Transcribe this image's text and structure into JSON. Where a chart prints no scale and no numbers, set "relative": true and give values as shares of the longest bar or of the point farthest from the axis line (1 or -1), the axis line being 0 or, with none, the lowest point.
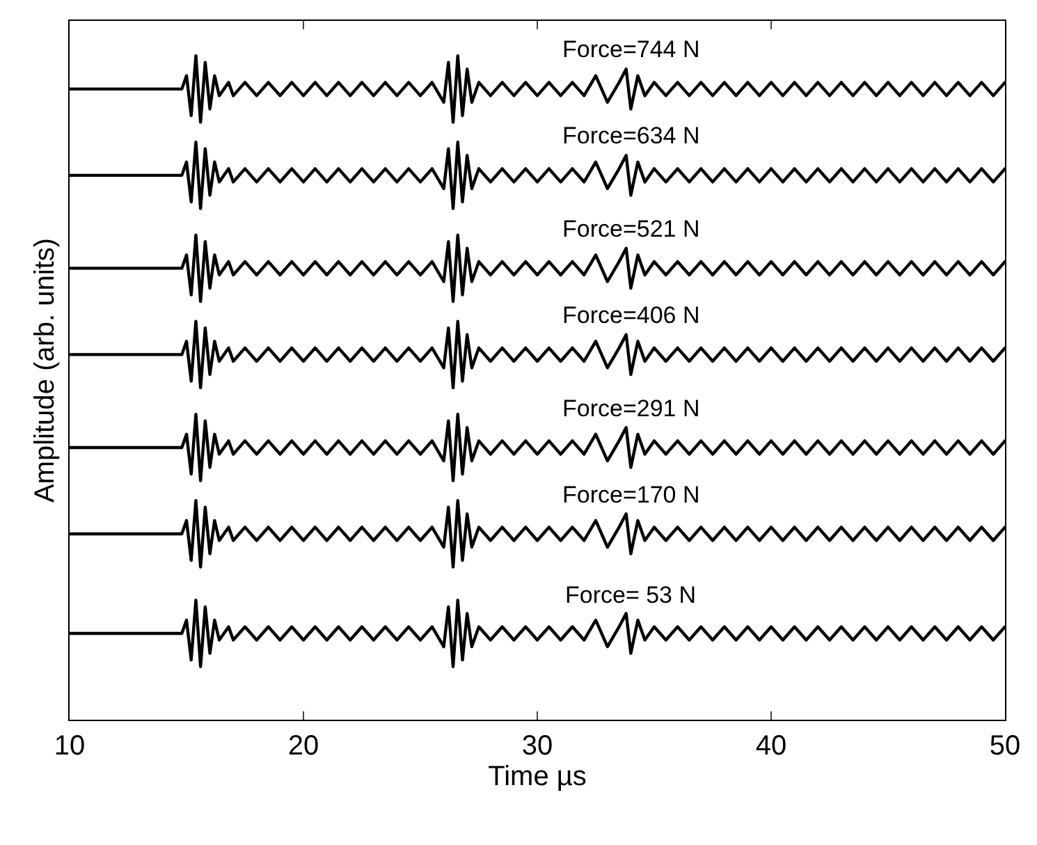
{
  "chart_data": {
    "type": "line",
    "xlabel": "Time µs",
    "ylabel": "Amplitude (arb. units)",
    "relative": true,
    "tick_labels": "x",
    "legend": false,
    "marker": "none",
    "line_style": "solid",
    "xlim": [
      10,
      50
    ],
    "xticks": [
      10,
      20,
      30,
      40,
      50
    ],
    "x": [
      10,
      14.8,
      15.0,
      15.2,
      15.4,
      15.6,
      15.8,
      16.0,
      16.2,
      16.4,
      16.8,
      17.0,
      17.5,
      18,
      18.5,
      19,
      19.5,
      20,
      20.5,
      21,
      21.5,
      22,
      22.5,
      23,
      23.5,
      24,
      24.5,
      25,
      25.5,
      26.0,
      26.2,
      26.4,
      26.6,
      26.8,
      27.0,
      27.2,
      27.5,
      28,
      28.5,
      29,
      29.5,
      30,
      30.5,
      31,
      31.5,
      32,
      32.5,
      33,
      33.5,
      33.8,
      34.0,
      34.3,
      34.6,
      35,
      35.5,
      36,
      36.5,
      37,
      37.5,
      38,
      38.5,
      39,
      39.5,
      40,
      40.5,
      41,
      41.5,
      42,
      42.5,
      43,
      43.5,
      44,
      44.5,
      45,
      45.5,
      46,
      46.5,
      47,
      47.5,
      48,
      48.5,
      49,
      49.5,
      50
    ],
    "series": [
      {
        "name": "Force=744 N",
        "color": "#000000",
        "values": [
          0.95,
          0.95,
          0.97,
          0.91,
          1.0,
          0.9,
          0.99,
          0.92,
          0.97,
          0.94,
          0.96,
          0.94,
          0.96,
          0.94,
          0.96,
          0.94,
          0.96,
          0.94,
          0.96,
          0.94,
          0.96,
          0.94,
          0.96,
          0.94,
          0.96,
          0.94,
          0.96,
          0.94,
          0.96,
          0.93,
          0.99,
          0.9,
          1.0,
          0.91,
          0.98,
          0.93,
          0.96,
          0.94,
          0.96,
          0.94,
          0.96,
          0.94,
          0.96,
          0.94,
          0.96,
          0.94,
          0.97,
          0.93,
          0.96,
          0.98,
          0.92,
          0.97,
          0.94,
          0.96,
          0.94,
          0.96,
          0.94,
          0.96,
          0.94,
          0.96,
          0.94,
          0.96,
          0.94,
          0.96,
          0.94,
          0.96,
          0.94,
          0.96,
          0.94,
          0.96,
          0.94,
          0.96,
          0.94,
          0.96,
          0.94,
          0.96,
          0.94,
          0.96,
          0.94,
          0.96,
          0.94,
          0.96,
          0.94,
          0.96
        ]
      },
      {
        "name": "Force=634 N",
        "color": "#000000",
        "values": [
          0.82,
          0.82,
          0.84,
          0.78,
          0.87,
          0.77,
          0.86,
          0.79,
          0.84,
          0.81,
          0.83,
          0.81,
          0.83,
          0.81,
          0.83,
          0.81,
          0.83,
          0.81,
          0.83,
          0.81,
          0.83,
          0.81,
          0.83,
          0.81,
          0.83,
          0.81,
          0.83,
          0.81,
          0.83,
          0.8,
          0.86,
          0.77,
          0.87,
          0.78,
          0.85,
          0.8,
          0.83,
          0.81,
          0.83,
          0.81,
          0.83,
          0.81,
          0.83,
          0.81,
          0.83,
          0.81,
          0.84,
          0.8,
          0.83,
          0.85,
          0.79,
          0.84,
          0.81,
          0.83,
          0.81,
          0.83,
          0.81,
          0.83,
          0.81,
          0.83,
          0.81,
          0.83,
          0.81,
          0.83,
          0.81,
          0.83,
          0.81,
          0.83,
          0.81,
          0.83,
          0.81,
          0.83,
          0.81,
          0.83,
          0.81,
          0.83,
          0.81,
          0.83,
          0.81,
          0.83,
          0.81,
          0.83,
          0.81,
          0.83
        ]
      },
      {
        "name": "Force=521 N",
        "color": "#000000",
        "values": [
          0.68,
          0.68,
          0.7,
          0.64,
          0.73,
          0.63,
          0.72,
          0.65,
          0.7,
          0.67,
          0.69,
          0.67,
          0.69,
          0.67,
          0.69,
          0.67,
          0.69,
          0.67,
          0.69,
          0.67,
          0.69,
          0.67,
          0.69,
          0.67,
          0.69,
          0.67,
          0.69,
          0.67,
          0.69,
          0.66,
          0.72,
          0.63,
          0.73,
          0.64,
          0.71,
          0.66,
          0.69,
          0.67,
          0.69,
          0.67,
          0.69,
          0.67,
          0.69,
          0.67,
          0.69,
          0.67,
          0.7,
          0.66,
          0.69,
          0.71,
          0.65,
          0.7,
          0.67,
          0.69,
          0.67,
          0.69,
          0.67,
          0.69,
          0.67,
          0.69,
          0.67,
          0.69,
          0.67,
          0.69,
          0.67,
          0.69,
          0.67,
          0.69,
          0.67,
          0.69,
          0.67,
          0.69,
          0.67,
          0.69,
          0.67,
          0.69,
          0.67,
          0.69,
          0.67,
          0.69,
          0.67,
          0.69,
          0.67,
          0.69
        ]
      },
      {
        "name": "Force=406 N",
        "color": "#000000",
        "values": [
          0.55,
          0.55,
          0.57,
          0.51,
          0.6,
          0.5,
          0.59,
          0.52,
          0.57,
          0.54,
          0.56,
          0.54,
          0.56,
          0.54,
          0.56,
          0.54,
          0.56,
          0.54,
          0.56,
          0.54,
          0.56,
          0.54,
          0.56,
          0.54,
          0.56,
          0.54,
          0.56,
          0.54,
          0.56,
          0.53,
          0.59,
          0.5,
          0.6,
          0.51,
          0.58,
          0.53,
          0.56,
          0.54,
          0.56,
          0.54,
          0.56,
          0.54,
          0.56,
          0.54,
          0.56,
          0.54,
          0.57,
          0.53,
          0.56,
          0.58,
          0.52,
          0.57,
          0.54,
          0.56,
          0.54,
          0.56,
          0.54,
          0.56,
          0.54,
          0.56,
          0.54,
          0.56,
          0.54,
          0.56,
          0.54,
          0.56,
          0.54,
          0.56,
          0.54,
          0.56,
          0.54,
          0.56,
          0.54,
          0.56,
          0.54,
          0.56,
          0.54,
          0.56,
          0.54,
          0.56,
          0.54,
          0.56,
          0.54,
          0.56
        ]
      },
      {
        "name": "Force=291 N",
        "color": "#000000",
        "values": [
          0.41,
          0.41,
          0.43,
          0.37,
          0.46,
          0.36,
          0.45,
          0.38,
          0.43,
          0.4,
          0.42,
          0.4,
          0.42,
          0.4,
          0.42,
          0.4,
          0.42,
          0.4,
          0.42,
          0.4,
          0.42,
          0.4,
          0.42,
          0.4,
          0.42,
          0.4,
          0.42,
          0.4,
          0.42,
          0.39,
          0.45,
          0.36,
          0.46,
          0.37,
          0.44,
          0.39,
          0.42,
          0.4,
          0.42,
          0.4,
          0.42,
          0.4,
          0.42,
          0.4,
          0.42,
          0.4,
          0.43,
          0.39,
          0.42,
          0.44,
          0.38,
          0.43,
          0.4,
          0.42,
          0.4,
          0.42,
          0.4,
          0.42,
          0.4,
          0.42,
          0.4,
          0.42,
          0.4,
          0.42,
          0.4,
          0.42,
          0.4,
          0.42,
          0.4,
          0.42,
          0.4,
          0.42,
          0.4,
          0.42,
          0.4,
          0.42,
          0.4,
          0.42,
          0.4,
          0.42,
          0.4,
          0.42,
          0.4,
          0.42
        ]
      },
      {
        "name": "Force=170 N",
        "color": "#000000",
        "values": [
          0.28,
          0.28,
          0.3,
          0.24,
          0.33,
          0.23,
          0.32,
          0.25,
          0.3,
          0.27,
          0.29,
          0.27,
          0.29,
          0.27,
          0.29,
          0.27,
          0.29,
          0.27,
          0.29,
          0.27,
          0.29,
          0.27,
          0.29,
          0.27,
          0.29,
          0.27,
          0.29,
          0.27,
          0.29,
          0.26,
          0.32,
          0.23,
          0.33,
          0.24,
          0.31,
          0.26,
          0.29,
          0.27,
          0.29,
          0.27,
          0.29,
          0.27,
          0.29,
          0.27,
          0.29,
          0.27,
          0.3,
          0.26,
          0.29,
          0.31,
          0.25,
          0.3,
          0.27,
          0.29,
          0.27,
          0.29,
          0.27,
          0.29,
          0.27,
          0.29,
          0.27,
          0.29,
          0.27,
          0.29,
          0.27,
          0.29,
          0.27,
          0.29,
          0.27,
          0.29,
          0.27,
          0.29,
          0.27,
          0.29,
          0.27,
          0.29,
          0.27,
          0.29,
          0.27,
          0.29,
          0.27,
          0.29,
          0.27,
          0.29
        ]
      },
      {
        "name": "Force= 53 N",
        "color": "#000000",
        "values": [
          0.13,
          0.13,
          0.15,
          0.09,
          0.18,
          0.08,
          0.17,
          0.1,
          0.15,
          0.12,
          0.14,
          0.12,
          0.14,
          0.12,
          0.14,
          0.12,
          0.14,
          0.12,
          0.14,
          0.12,
          0.14,
          0.12,
          0.14,
          0.12,
          0.14,
          0.12,
          0.14,
          0.12,
          0.14,
          0.11,
          0.17,
          0.08,
          0.18,
          0.09,
          0.16,
          0.11,
          0.14,
          0.12,
          0.14,
          0.12,
          0.14,
          0.12,
          0.14,
          0.12,
          0.14,
          0.12,
          0.15,
          0.11,
          0.14,
          0.16,
          0.1,
          0.15,
          0.12,
          0.14,
          0.12,
          0.14,
          0.12,
          0.14,
          0.12,
          0.14,
          0.12,
          0.14,
          0.12,
          0.14,
          0.12,
          0.14,
          0.12,
          0.14,
          0.12,
          0.14,
          0.12,
          0.14,
          0.12,
          0.14,
          0.12,
          0.14,
          0.12,
          0.14,
          0.12,
          0.14,
          0.12,
          0.14,
          0.12,
          0.14
        ]
      }
    ]
  }
}
